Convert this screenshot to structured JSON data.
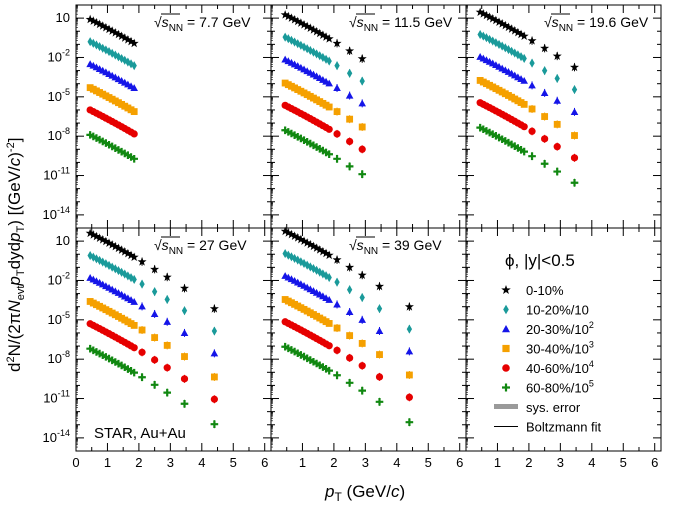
{
  "chart_data": {
    "type": "scatter",
    "title": "",
    "xlabel": "p_T (GeV/c)",
    "ylabel": "d²N/(2πN_evt p_T dy dp_T) [(GeV/c)^-2]",
    "xlim": [
      0,
      6.2
    ],
    "ylim_exponent": [
      -15,
      2
    ],
    "y_log": true,
    "x_ticks": [
      "0",
      "1",
      "2",
      "3",
      "4",
      "5",
      "6"
    ],
    "y_ticks": [
      {
        "base": "10",
        "exp": "-14",
        "value": -14
      },
      {
        "base": "10",
        "exp": "-11",
        "value": -11
      },
      {
        "base": "10",
        "exp": "-8",
        "value": -8
      },
      {
        "base": "10",
        "exp": "-5",
        "value": -5
      },
      {
        "base": "10",
        "exp": "-2",
        "value": -2
      },
      {
        "base": "10",
        "exp": "",
        "value": 1
      }
    ],
    "panels": [
      {
        "id": "7.7",
        "label_sym": "√s",
        "label_sub": "NN",
        "label_val": "= 7.7 GeV",
        "pt_max": 1.85
      },
      {
        "id": "11.5",
        "label_sym": "√s",
        "label_sub": "NN",
        "label_val": "= 11.5 GeV",
        "pt_max": 2.9
      },
      {
        "id": "19.6",
        "label_sym": "√s",
        "label_sub": "NN",
        "label_val": "= 19.6 GeV",
        "pt_max": 3.5
      },
      {
        "id": "27",
        "label_sym": "√s",
        "label_sub": "NN",
        "label_val": "= 27 GeV",
        "pt_max": 4.5
      },
      {
        "id": "39",
        "label_sym": "√s",
        "label_sub": "NN",
        "label_val": "= 39 GeV",
        "pt_max": 4.5
      }
    ],
    "series": [
      {
        "name": "0-10%",
        "marker": "star",
        "color": "#000000",
        "log_y0": 0.9,
        "slope": 1.22
      },
      {
        "name": "10-20%/10",
        "marker": "diamond",
        "color": "#1a9a9a",
        "log_y0": -0.8,
        "slope": 1.22
      },
      {
        "name": "20-30%/10²",
        "marker": "triangle",
        "color": "#1515e8",
        "log_y0": -2.5,
        "slope": 1.22
      },
      {
        "name": "30-40%/10³",
        "marker": "square",
        "color": "#f5a000",
        "log_y0": -4.3,
        "slope": 1.22
      },
      {
        "name": "40-60%/10⁴",
        "marker": "circle",
        "color": "#e60000",
        "log_y0": -6.0,
        "slope": 1.22
      },
      {
        "name": "60-80%/10⁵",
        "marker": "cross",
        "color": "#118811",
        "log_y0": -7.9,
        "slope": 1.22
      }
    ],
    "pt_points": [
      0.45,
      0.55,
      0.65,
      0.75,
      0.85,
      0.95,
      1.05,
      1.15,
      1.25,
      1.35,
      1.45,
      1.55,
      1.65,
      1.75,
      1.85,
      2.1,
      2.5,
      2.9,
      3.45,
      4.4
    ]
  },
  "annotations": {
    "particle_label": "ϕ, |y|<0.5",
    "experiment_label": "STAR, Au+Au"
  },
  "legend": {
    "entries": [
      {
        "label": "0-10%",
        "marker": "star",
        "color": "#000000"
      },
      {
        "label": "10-20%/10",
        "marker": "diamond",
        "color": "#1a9a9a"
      },
      {
        "label": "20-30%/10",
        "sup": "2",
        "marker": "triangle",
        "color": "#1515e8"
      },
      {
        "label": "30-40%/10",
        "sup": "3",
        "marker": "square",
        "color": "#f5a000"
      },
      {
        "label": "40-60%/10",
        "sup": "4",
        "marker": "circle",
        "color": "#e60000"
      },
      {
        "label": "60-80%/10",
        "sup": "5",
        "marker": "cross",
        "color": "#118811"
      },
      {
        "label": "sys. error",
        "marker": "band",
        "color": "#9a9a9a"
      },
      {
        "label": "Boltzmann fit",
        "marker": "line",
        "color": "#000000"
      }
    ]
  },
  "axis_titles": {
    "x_main": "p",
    "x_sub": "T",
    "x_rest": " (GeV/",
    "x_c": "c",
    "x_close": ")",
    "y_d": "d",
    "y_sup2": "2",
    "y_n": "N/(2π",
    "y_N": "N",
    "y_evt": "evt",
    "y_p": "p",
    "y_T": "T",
    "y_dy": "dyd",
    "y_p2": "p",
    "y_T2": "T",
    "y_close": ") [(GeV/",
    "y_c": "c",
    "y_close2": ")",
    "y_sup": "-2",
    "y_end": "]"
  }
}
